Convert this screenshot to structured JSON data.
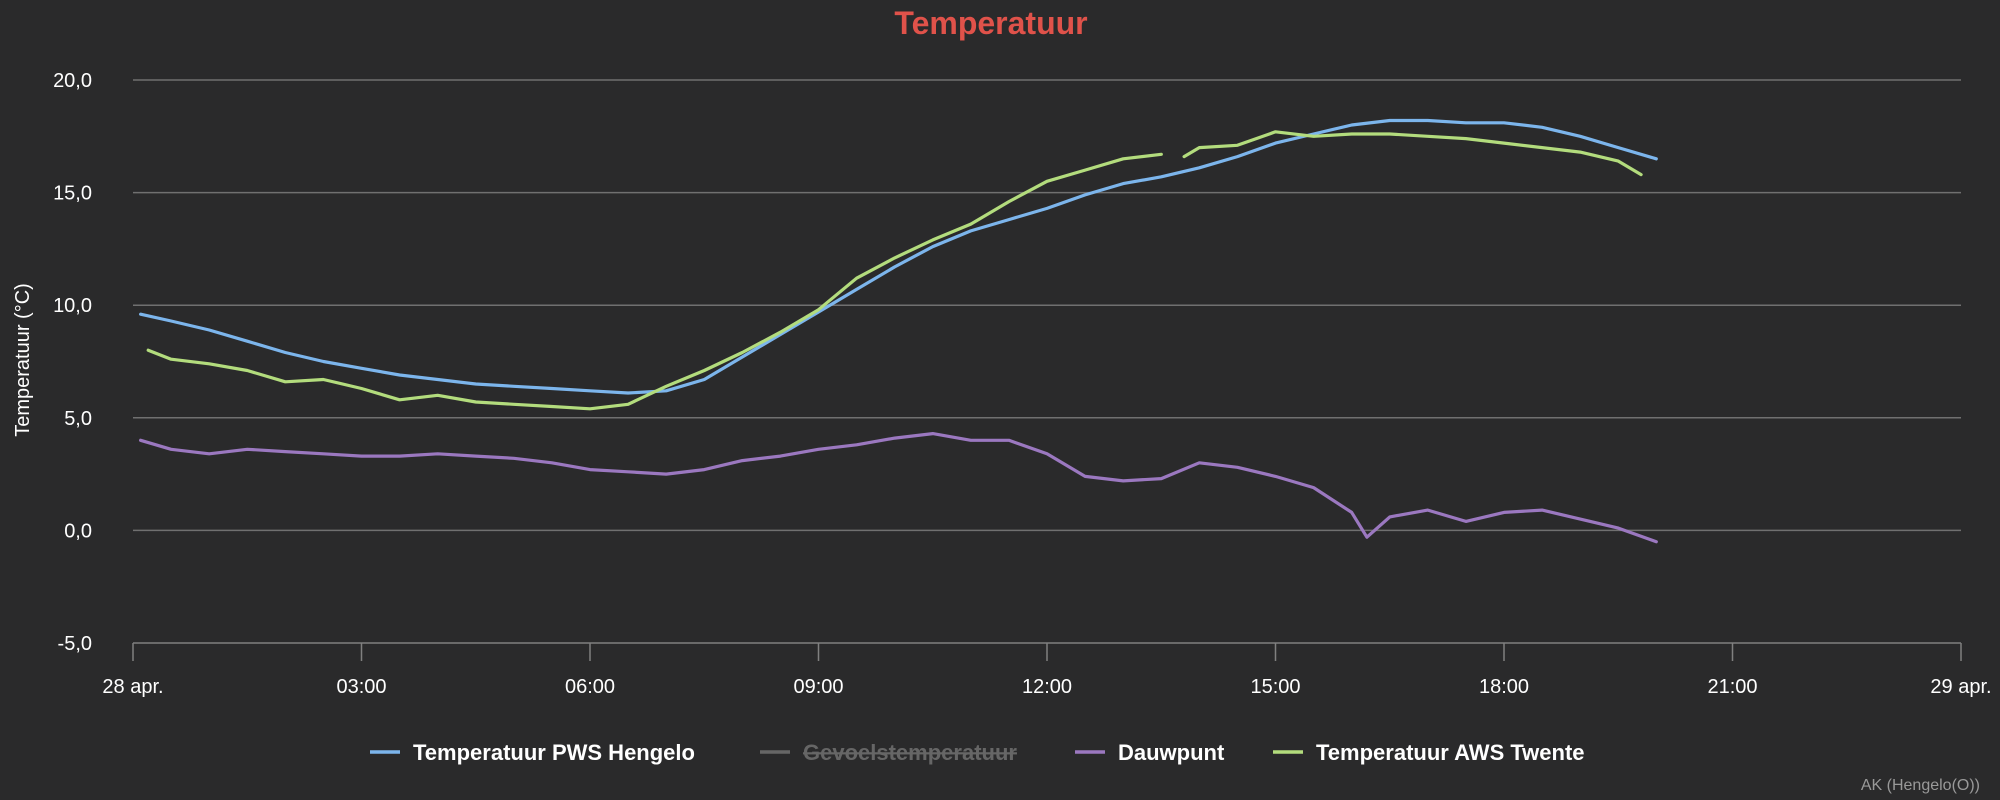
{
  "chart_data": {
    "type": "line",
    "title": "Temperatuur",
    "ylabel": "Temperatuur (°C)",
    "xlabel": "",
    "xlim": [
      0,
      24
    ],
    "ylim": [
      -5,
      20
    ],
    "yticks": [
      20,
      15,
      10,
      5,
      0,
      -5
    ],
    "ytick_labels": [
      "20,0",
      "15,0",
      "10,0",
      "5,0",
      "0,0",
      "-5,0"
    ],
    "xticks": [
      0,
      3,
      6,
      9,
      12,
      15,
      18,
      21,
      24
    ],
    "xtick_labels": [
      "28 apr.",
      "03:00",
      "06:00",
      "09:00",
      "12:00",
      "15:00",
      "18:00",
      "21:00",
      "29 apr."
    ],
    "grid": true,
    "legend_position": "bottom-center",
    "credit": "AK (Hengelo(O))",
    "colors": {
      "background": "#2a2a2b",
      "title": "#e0524a",
      "pws": "#7cb5ec",
      "gevoel": "#666666",
      "dauwpunt": "#9b78c0",
      "aws": "#b3dc7d"
    },
    "series": [
      {
        "name": "Temperatuur PWS Hengelo",
        "color": "#7cb5ec",
        "x": [
          0.1,
          0.5,
          1,
          1.5,
          2,
          2.5,
          3,
          3.5,
          4,
          4.5,
          5,
          5.5,
          6,
          6.5,
          7,
          7.5,
          8,
          8.5,
          9,
          9.5,
          10,
          10.5,
          11,
          11.5,
          12,
          12.5,
          13,
          13.5,
          14,
          14.5,
          15,
          15.5,
          16,
          16.5,
          17,
          17.5,
          18,
          18.5,
          19,
          19.5,
          20
        ],
        "y": [
          9.6,
          9.3,
          8.9,
          8.4,
          7.9,
          7.5,
          7.2,
          6.9,
          6.7,
          6.5,
          6.4,
          6.3,
          6.2,
          6.1,
          6.2,
          6.7,
          7.7,
          8.7,
          9.7,
          10.7,
          11.7,
          12.6,
          13.3,
          13.8,
          14.3,
          14.9,
          15.4,
          15.7,
          16.1,
          16.6,
          17.2,
          17.6,
          18.0,
          18.2,
          18.2,
          18.1,
          18.1,
          17.9,
          17.5,
          17.0,
          16.5
        ]
      },
      {
        "name": "Gevoelstemperatuur",
        "color": "#666666",
        "visible": false,
        "x": [],
        "y": []
      },
      {
        "name": "Dauwpunt",
        "color": "#9b78c0",
        "x": [
          0.1,
          0.5,
          1,
          1.5,
          2,
          2.5,
          3,
          3.5,
          4,
          4.5,
          5,
          5.5,
          6,
          6.5,
          7,
          7.5,
          8,
          8.5,
          9,
          9.5,
          10,
          10.5,
          11,
          11.5,
          12,
          12.5,
          13,
          13.5,
          14,
          14.5,
          15,
          15.5,
          16,
          16.2,
          16.5,
          17,
          17.5,
          18,
          18.5,
          19,
          19.5,
          20
        ],
        "y": [
          4.0,
          3.6,
          3.4,
          3.6,
          3.5,
          3.4,
          3.3,
          3.3,
          3.4,
          3.3,
          3.2,
          3.0,
          2.7,
          2.6,
          2.5,
          2.7,
          3.1,
          3.3,
          3.6,
          3.8,
          4.1,
          4.3,
          4.0,
          4.0,
          3.4,
          2.4,
          2.2,
          2.3,
          3.0,
          2.8,
          2.4,
          1.9,
          0.8,
          -0.3,
          0.6,
          0.9,
          0.4,
          0.8,
          0.9,
          0.5,
          0.1,
          -0.5
        ]
      },
      {
        "name": "Temperatuur AWS Twente",
        "color": "#b3dc7d",
        "x": [
          0.2,
          0.5,
          1,
          1.5,
          2,
          2.5,
          3,
          3.5,
          4,
          4.5,
          5,
          5.5,
          6,
          6.5,
          7,
          7.5,
          8,
          8.5,
          9,
          9.5,
          10,
          10.5,
          11,
          11.5,
          12,
          12.5,
          13,
          13.5,
          null,
          13.8,
          14,
          14.5,
          15,
          15.5,
          16,
          16.5,
          17,
          17.5,
          18,
          18.5,
          19,
          19.5,
          19.8
        ],
        "y": [
          8.0,
          7.6,
          7.4,
          7.1,
          6.6,
          6.7,
          6.3,
          5.8,
          6.0,
          5.7,
          5.6,
          5.5,
          5.4,
          5.6,
          6.4,
          7.1,
          7.9,
          8.8,
          9.8,
          11.2,
          12.1,
          12.9,
          13.6,
          14.6,
          15.5,
          16.0,
          16.5,
          16.7,
          null,
          16.6,
          17.0,
          17.1,
          17.7,
          17.5,
          17.6,
          17.6,
          17.5,
          17.4,
          17.2,
          17.0,
          16.8,
          16.4,
          15.8
        ]
      }
    ]
  }
}
